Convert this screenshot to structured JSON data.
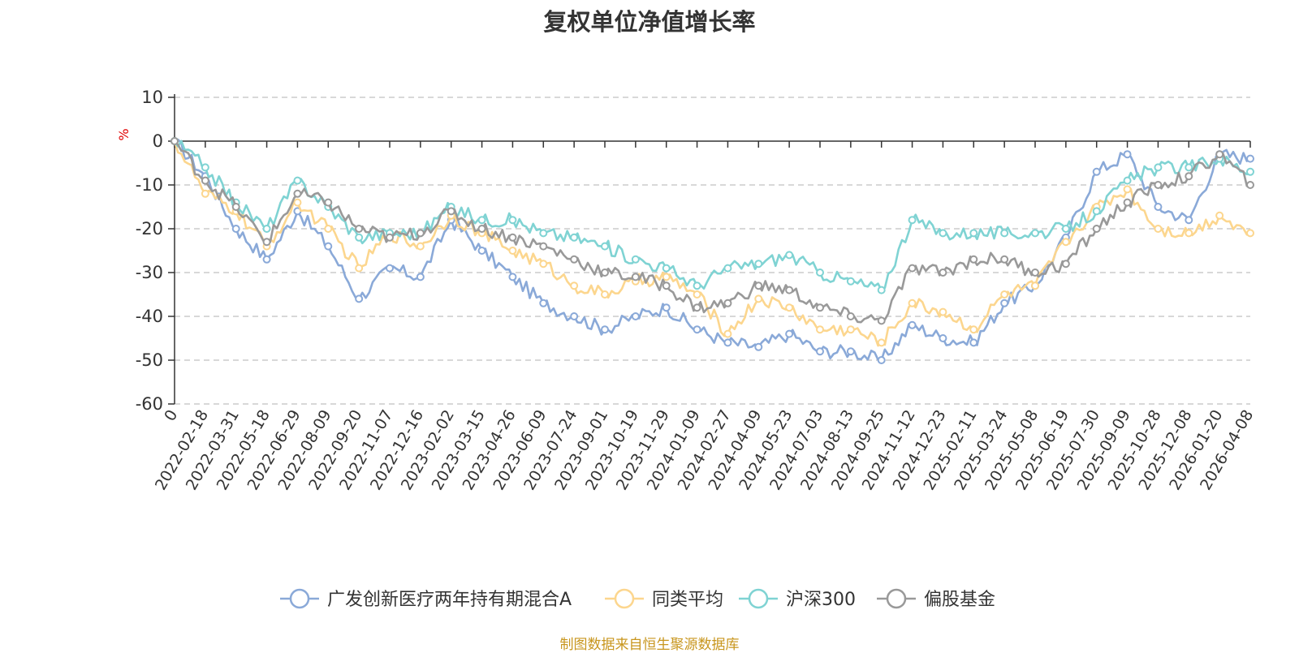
{
  "chart_data": {
    "type": "line",
    "title": "复权单位净值增长率",
    "ylabel": "%",
    "ylim": [
      -60,
      10
    ],
    "yticks": [
      10,
      0,
      -10,
      -20,
      -30,
      -40,
      -50,
      -60
    ],
    "grid": true,
    "legend_position": "bottom",
    "categories": [
      "0",
      "2022-02-18",
      "2022-03-31",
      "2022-05-18",
      "2022-06-29",
      "2022-08-09",
      "2022-09-20",
      "2022-11-07",
      "2022-12-16",
      "2023-02-02",
      "2023-03-15",
      "2023-04-26",
      "2023-06-09",
      "2023-07-24",
      "2023-09-01",
      "2023-10-19",
      "2023-11-29",
      "2024-01-09",
      "2024-02-27",
      "2024-04-09",
      "2024-05-23",
      "2024-07-03",
      "2024-08-13",
      "2024-09-25",
      "2024-11-12",
      "2024-12-23",
      "2025-02-11",
      "2025-03-24",
      "2025-05-08",
      "2025-06-19",
      "2025-07-30",
      "2025-09-09",
      "2025-10-28",
      "2025-12-08",
      "2026-01-20",
      "2026-04-08"
    ],
    "series": [
      {
        "name": "广发创新医疗两年持有期混合A",
        "color": "#8aa9d8",
        "values": [
          0,
          -8,
          -20,
          -27,
          -16,
          -24,
          -36,
          -29,
          -31,
          -18,
          -25,
          -31,
          -37,
          -40,
          -43,
          -40,
          -38,
          -43,
          -46,
          -47,
          -44,
          -48,
          -48,
          -50,
          -42,
          -45,
          -46,
          -37,
          -33,
          -22,
          -7,
          -3,
          -15,
          -18,
          -3,
          -4
        ]
      },
      {
        "name": "同类平均",
        "color": "#fcd68e",
        "values": [
          0,
          -12,
          -16,
          -24,
          -14,
          -20,
          -29,
          -21,
          -24,
          -17,
          -21,
          -25,
          -28,
          -33,
          -35,
          -32,
          -31,
          -35,
          -44,
          -36,
          -38,
          -43,
          -43,
          -46,
          -37,
          -39,
          -43,
          -35,
          -33,
          -23,
          -15,
          -11,
          -20,
          -21,
          -17,
          -21
        ]
      },
      {
        "name": "沪深300",
        "color": "#7fd3d3",
        "values": [
          0,
          -6,
          -14,
          -20,
          -9,
          -15,
          -22,
          -21,
          -21,
          -15,
          -18,
          -18,
          -21,
          -22,
          -24,
          -27,
          -29,
          -33,
          -29,
          -28,
          -26,
          -30,
          -32,
          -34,
          -18,
          -21,
          -21,
          -21,
          -21,
          -20,
          -16,
          -9,
          -6,
          -6,
          -4,
          -7
        ]
      },
      {
        "name": "偏股基金",
        "color": "#999999",
        "values": [
          0,
          -9,
          -15,
          -23,
          -12,
          -14,
          -20,
          -22,
          -21,
          -16,
          -20,
          -22,
          -24,
          -27,
          -30,
          -31,
          -33,
          -38,
          -37,
          -33,
          -34,
          -38,
          -40,
          -41,
          -29,
          -30,
          -27,
          -27,
          -30,
          -28,
          -20,
          -14,
          -10,
          -8,
          -3,
          -10
        ]
      }
    ]
  },
  "source_note": "制图数据来自恒生聚源数据库"
}
